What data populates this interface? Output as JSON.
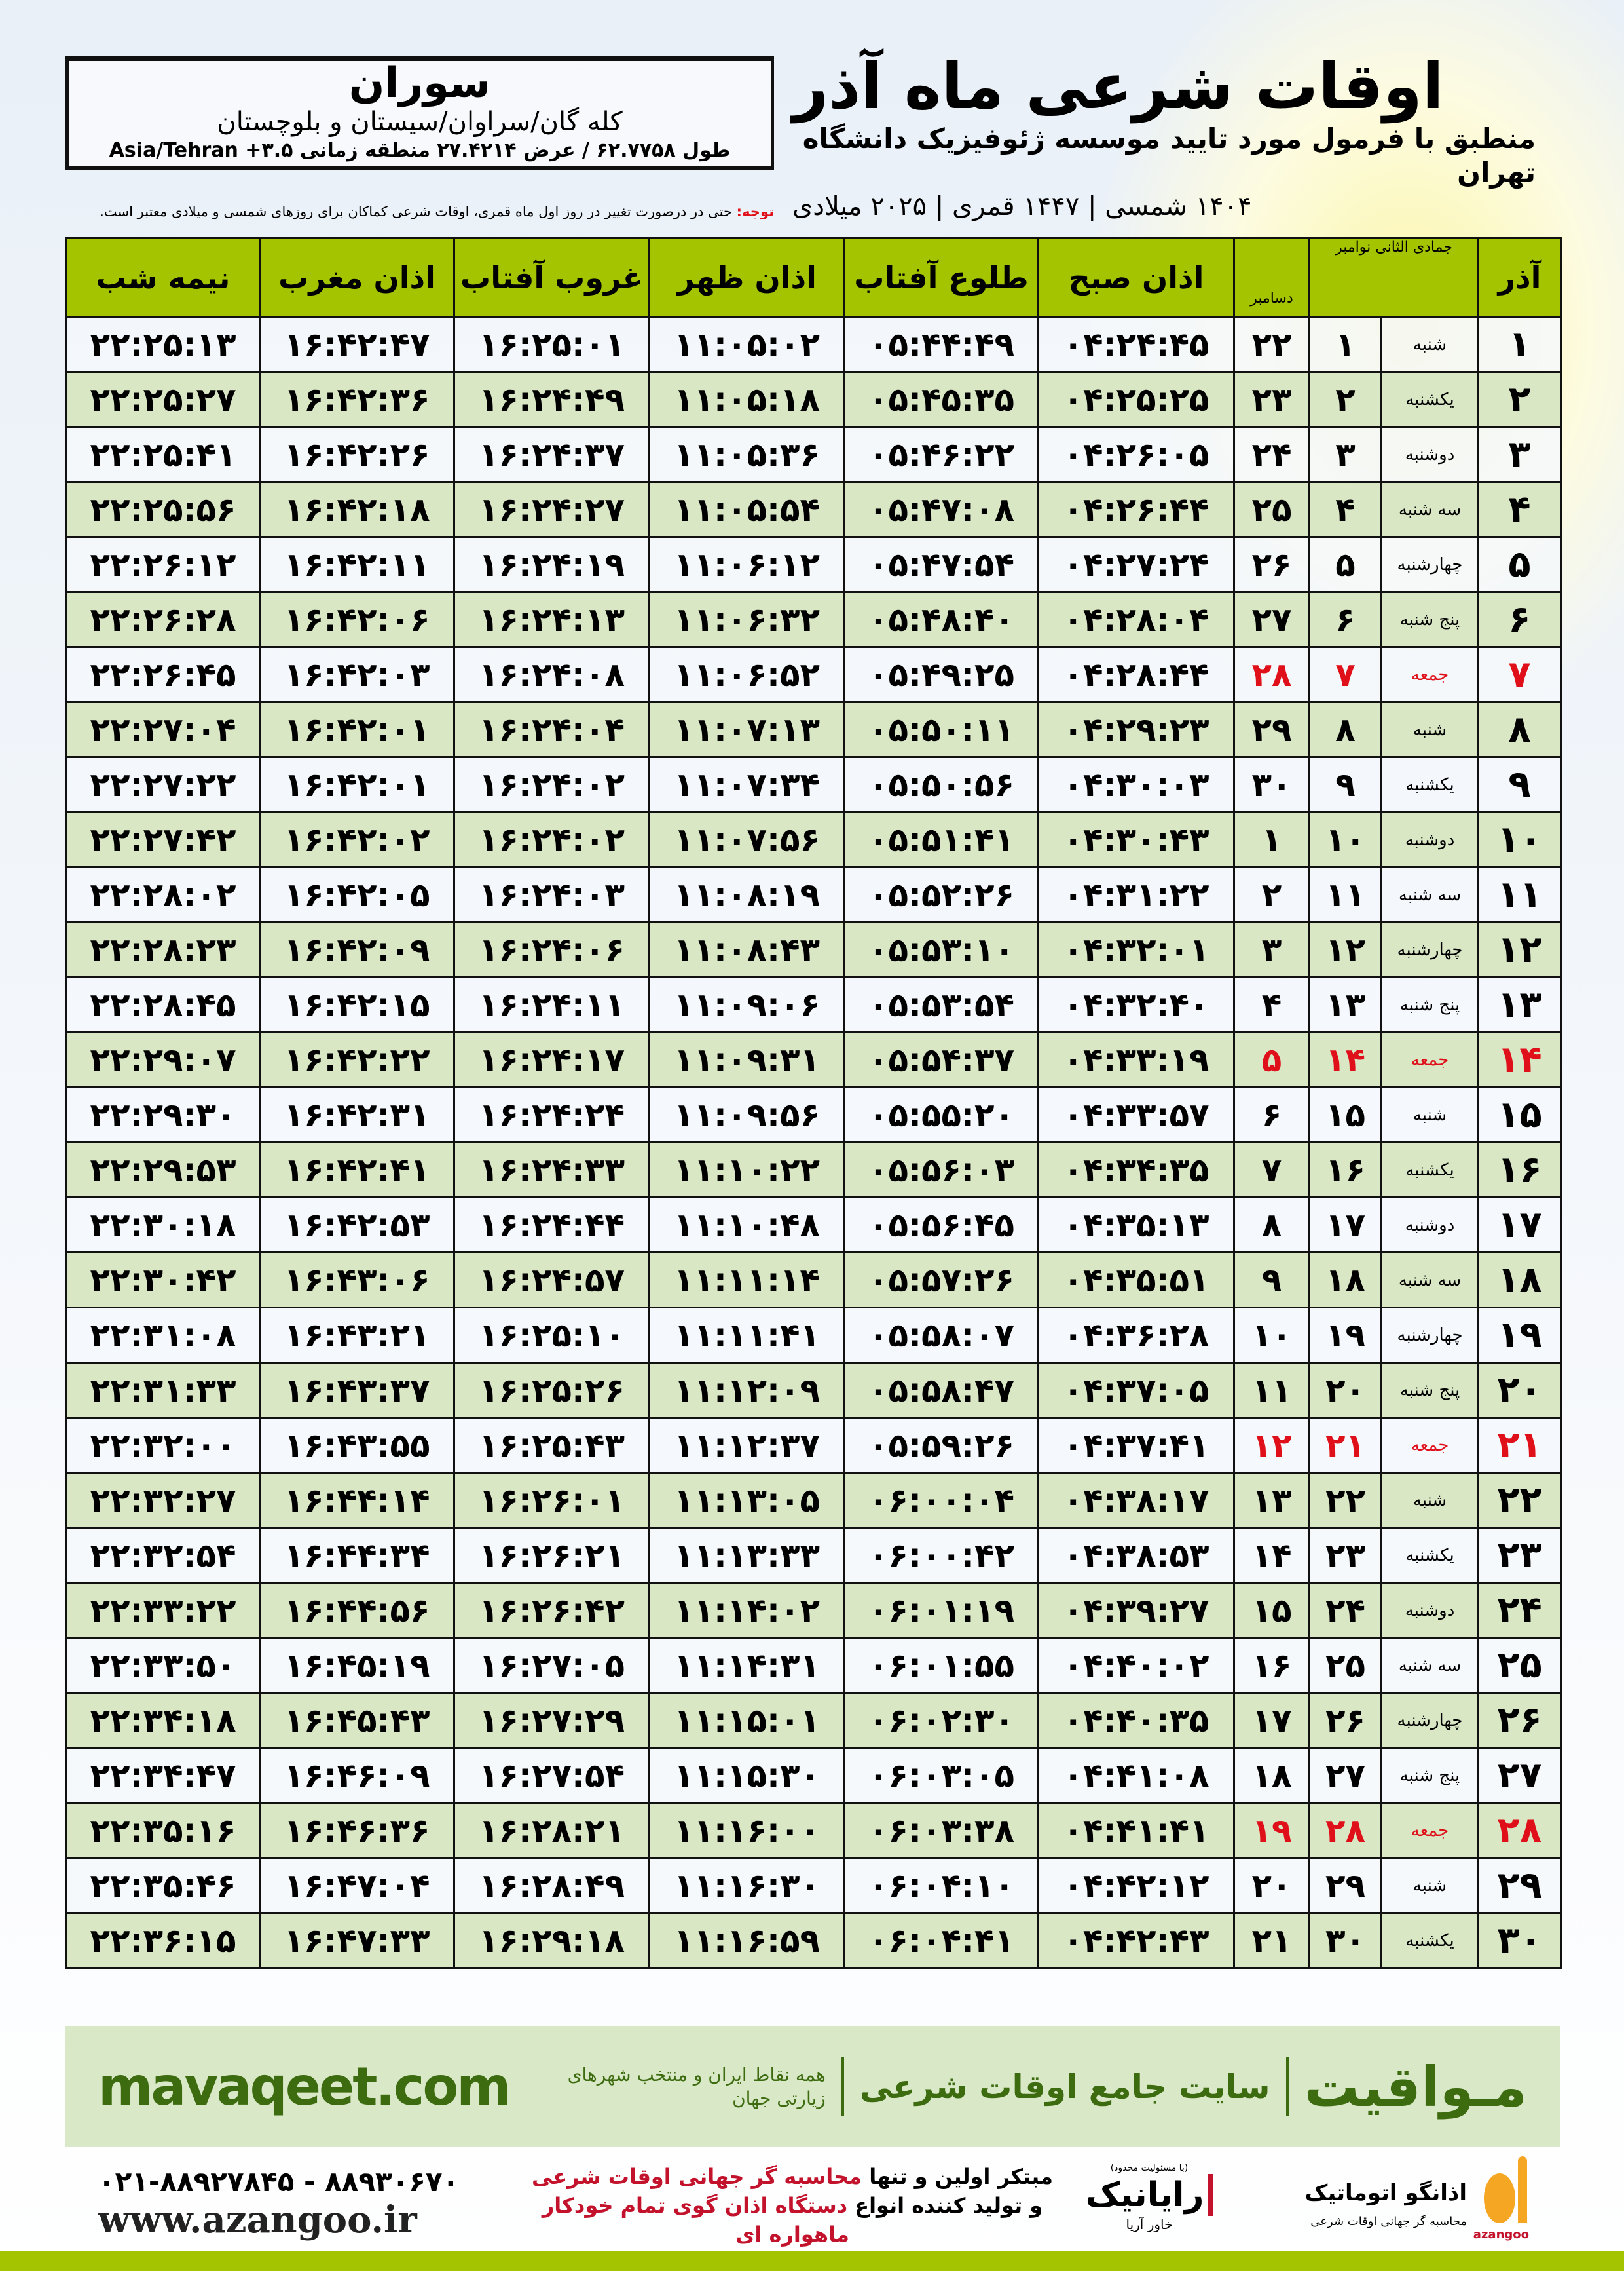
{
  "location": {
    "city": "سوران",
    "region": "کله گان/سراوان/سیستان و بلوچستان",
    "coords": "طول ۶۲.۷۷۵۸ / عرض ۲۷.۴۲۱۴ منطقه زمانی ۳.۵+ Asia/Tehran"
  },
  "header": {
    "title": "اوقات شرعی ماه آذر",
    "subtitle": "منطبق با فرمول مورد تایید موسسه ژئوفیزیک دانشگاه تهران",
    "dateline": "۱۴۰۴ شمسی | ۱۴۴۷ قمری | ۲۰۲۵ میلادی"
  },
  "note": {
    "label": "توجه:",
    "text": " حتی در درصورت تغییر در روز اول ماه قمری، اوقات شرعی کماکان برای روزهای شمسی و میلادی معتبر است."
  },
  "table": {
    "headers": {
      "azar": "آذر",
      "jumada": "جمادی الثانی",
      "november": "نوامبر",
      "december": "دسامبر",
      "sobh": "اذان صبح",
      "tolu": "طلوع آفتاب",
      "zohr": "اذان ظهر",
      "ghorub": "غروب آفتاب",
      "maghreb": "اذان مغرب",
      "nime": "نیمه شب"
    },
    "friday_color": "#e0101a",
    "rows": [
      [
        "۱",
        "شنبه",
        "۱",
        "۲۲",
        "۰۴:۲۴:۴۵",
        "۰۵:۴۴:۴۹",
        "۱۱:۰۵:۰۲",
        "۱۶:۲۵:۰۱",
        "۱۶:۴۲:۴۷",
        "۲۲:۲۵:۱۳"
      ],
      [
        "۲",
        "یکشنبه",
        "۲",
        "۲۳",
        "۰۴:۲۵:۲۵",
        "۰۵:۴۵:۳۵",
        "۱۱:۰۵:۱۸",
        "۱۶:۲۴:۴۹",
        "۱۶:۴۲:۳۶",
        "۲۲:۲۵:۲۷"
      ],
      [
        "۳",
        "دوشنبه",
        "۳",
        "۲۴",
        "۰۴:۲۶:۰۵",
        "۰۵:۴۶:۲۲",
        "۱۱:۰۵:۳۶",
        "۱۶:۲۴:۳۷",
        "۱۶:۴۲:۲۶",
        "۲۲:۲۵:۴۱"
      ],
      [
        "۴",
        "سه شنبه",
        "۴",
        "۲۵",
        "۰۴:۲۶:۴۴",
        "۰۵:۴۷:۰۸",
        "۱۱:۰۵:۵۴",
        "۱۶:۲۴:۲۷",
        "۱۶:۴۲:۱۸",
        "۲۲:۲۵:۵۶"
      ],
      [
        "۵",
        "چهارشنبه",
        "۵",
        "۲۶",
        "۰۴:۲۷:۲۴",
        "۰۵:۴۷:۵۴",
        "۱۱:۰۶:۱۲",
        "۱۶:۲۴:۱۹",
        "۱۶:۴۲:۱۱",
        "۲۲:۲۶:۱۲"
      ],
      [
        "۶",
        "پنج شنبه",
        "۶",
        "۲۷",
        "۰۴:۲۸:۰۴",
        "۰۵:۴۸:۴۰",
        "۱۱:۰۶:۳۲",
        "۱۶:۲۴:۱۳",
        "۱۶:۴۲:۰۶",
        "۲۲:۲۶:۲۸"
      ],
      [
        "۷",
        "جمعه",
        "۷",
        "۲۸",
        "۰۴:۲۸:۴۴",
        "۰۵:۴۹:۲۵",
        "۱۱:۰۶:۵۲",
        "۱۶:۲۴:۰۸",
        "۱۶:۴۲:۰۳",
        "۲۲:۲۶:۴۵"
      ],
      [
        "۸",
        "شنبه",
        "۸",
        "۲۹",
        "۰۴:۲۹:۲۳",
        "۰۵:۵۰:۱۱",
        "۱۱:۰۷:۱۳",
        "۱۶:۲۴:۰۴",
        "۱۶:۴۲:۰۱",
        "۲۲:۲۷:۰۴"
      ],
      [
        "۹",
        "یکشنبه",
        "۹",
        "۳۰",
        "۰۴:۳۰:۰۳",
        "۰۵:۵۰:۵۶",
        "۱۱:۰۷:۳۴",
        "۱۶:۲۴:۰۲",
        "۱۶:۴۲:۰۱",
        "۲۲:۲۷:۲۲"
      ],
      [
        "۱۰",
        "دوشنبه",
        "۱۰",
        "۱",
        "۰۴:۳۰:۴۳",
        "۰۵:۵۱:۴۱",
        "۱۱:۰۷:۵۶",
        "۱۶:۲۴:۰۲",
        "۱۶:۴۲:۰۲",
        "۲۲:۲۷:۴۲"
      ],
      [
        "۱۱",
        "سه شنبه",
        "۱۱",
        "۲",
        "۰۴:۳۱:۲۲",
        "۰۵:۵۲:۲۶",
        "۱۱:۰۸:۱۹",
        "۱۶:۲۴:۰۳",
        "۱۶:۴۲:۰۵",
        "۲۲:۲۸:۰۲"
      ],
      [
        "۱۲",
        "چهارشنبه",
        "۱۲",
        "۳",
        "۰۴:۳۲:۰۱",
        "۰۵:۵۳:۱۰",
        "۱۱:۰۸:۴۳",
        "۱۶:۲۴:۰۶",
        "۱۶:۴۲:۰۹",
        "۲۲:۲۸:۲۳"
      ],
      [
        "۱۳",
        "پنج شنبه",
        "۱۳",
        "۴",
        "۰۴:۳۲:۴۰",
        "۰۵:۵۳:۵۴",
        "۱۱:۰۹:۰۶",
        "۱۶:۲۴:۱۱",
        "۱۶:۴۲:۱۵",
        "۲۲:۲۸:۴۵"
      ],
      [
        "۱۴",
        "جمعه",
        "۱۴",
        "۵",
        "۰۴:۳۳:۱۹",
        "۰۵:۵۴:۳۷",
        "۱۱:۰۹:۳۱",
        "۱۶:۲۴:۱۷",
        "۱۶:۴۲:۲۲",
        "۲۲:۲۹:۰۷"
      ],
      [
        "۱۵",
        "شنبه",
        "۱۵",
        "۶",
        "۰۴:۳۳:۵۷",
        "۰۵:۵۵:۲۰",
        "۱۱:۰۹:۵۶",
        "۱۶:۲۴:۲۴",
        "۱۶:۴۲:۳۱",
        "۲۲:۲۹:۳۰"
      ],
      [
        "۱۶",
        "یکشنبه",
        "۱۶",
        "۷",
        "۰۴:۳۴:۳۵",
        "۰۵:۵۶:۰۳",
        "۱۱:۱۰:۲۲",
        "۱۶:۲۴:۳۳",
        "۱۶:۴۲:۴۱",
        "۲۲:۲۹:۵۳"
      ],
      [
        "۱۷",
        "دوشنبه",
        "۱۷",
        "۸",
        "۰۴:۳۵:۱۳",
        "۰۵:۵۶:۴۵",
        "۱۱:۱۰:۴۸",
        "۱۶:۲۴:۴۴",
        "۱۶:۴۲:۵۳",
        "۲۲:۳۰:۱۸"
      ],
      [
        "۱۸",
        "سه شنبه",
        "۱۸",
        "۹",
        "۰۴:۳۵:۵۱",
        "۰۵:۵۷:۲۶",
        "۱۱:۱۱:۱۴",
        "۱۶:۲۴:۵۷",
        "۱۶:۴۳:۰۶",
        "۲۲:۳۰:۴۲"
      ],
      [
        "۱۹",
        "چهارشنبه",
        "۱۹",
        "۱۰",
        "۰۴:۳۶:۲۸",
        "۰۵:۵۸:۰۷",
        "۱۱:۱۱:۴۱",
        "۱۶:۲۵:۱۰",
        "۱۶:۴۳:۲۱",
        "۲۲:۳۱:۰۸"
      ],
      [
        "۲۰",
        "پنج شنبه",
        "۲۰",
        "۱۱",
        "۰۴:۳۷:۰۵",
        "۰۵:۵۸:۴۷",
        "۱۱:۱۲:۰۹",
        "۱۶:۲۵:۲۶",
        "۱۶:۴۳:۳۷",
        "۲۲:۳۱:۳۳"
      ],
      [
        "۲۱",
        "جمعه",
        "۲۱",
        "۱۲",
        "۰۴:۳۷:۴۱",
        "۰۵:۵۹:۲۶",
        "۱۱:۱۲:۳۷",
        "۱۶:۲۵:۴۳",
        "۱۶:۴۳:۵۵",
        "۲۲:۳۲:۰۰"
      ],
      [
        "۲۲",
        "شنبه",
        "۲۲",
        "۱۳",
        "۰۴:۳۸:۱۷",
        "۰۶:۰۰:۰۴",
        "۱۱:۱۳:۰۵",
        "۱۶:۲۶:۰۱",
        "۱۶:۴۴:۱۴",
        "۲۲:۳۲:۲۷"
      ],
      [
        "۲۳",
        "یکشنبه",
        "۲۳",
        "۱۴",
        "۰۴:۳۸:۵۳",
        "۰۶:۰۰:۴۲",
        "۱۱:۱۳:۳۳",
        "۱۶:۲۶:۲۱",
        "۱۶:۴۴:۳۴",
        "۲۲:۳۲:۵۴"
      ],
      [
        "۲۴",
        "دوشنبه",
        "۲۴",
        "۱۵",
        "۰۴:۳۹:۲۷",
        "۰۶:۰۱:۱۹",
        "۱۱:۱۴:۰۲",
        "۱۶:۲۶:۴۲",
        "۱۶:۴۴:۵۶",
        "۲۲:۳۳:۲۲"
      ],
      [
        "۲۵",
        "سه شنبه",
        "۲۵",
        "۱۶",
        "۰۴:۴۰:۰۲",
        "۰۶:۰۱:۵۵",
        "۱۱:۱۴:۳۱",
        "۱۶:۲۷:۰۵",
        "۱۶:۴۵:۱۹",
        "۲۲:۳۳:۵۰"
      ],
      [
        "۲۶",
        "چهارشنبه",
        "۲۶",
        "۱۷",
        "۰۴:۴۰:۳۵",
        "۰۶:۰۲:۳۰",
        "۱۱:۱۵:۰۱",
        "۱۶:۲۷:۲۹",
        "۱۶:۴۵:۴۳",
        "۲۲:۳۴:۱۸"
      ],
      [
        "۲۷",
        "پنج شنبه",
        "۲۷",
        "۱۸",
        "۰۴:۴۱:۰۸",
        "۰۶:۰۳:۰۵",
        "۱۱:۱۵:۳۰",
        "۱۶:۲۷:۵۴",
        "۱۶:۴۶:۰۹",
        "۲۲:۳۴:۴۷"
      ],
      [
        "۲۸",
        "جمعه",
        "۲۸",
        "۱۹",
        "۰۴:۴۱:۴۱",
        "۰۶:۰۳:۳۸",
        "۱۱:۱۶:۰۰",
        "۱۶:۲۸:۲۱",
        "۱۶:۴۶:۳۶",
        "۲۲:۳۵:۱۶"
      ],
      [
        "۲۹",
        "شنبه",
        "۲۹",
        "۲۰",
        "۰۴:۴۲:۱۲",
        "۰۶:۰۴:۱۰",
        "۱۱:۱۶:۳۰",
        "۱۶:۲۸:۴۹",
        "۱۶:۴۷:۰۴",
        "۲۲:۳۵:۴۶"
      ],
      [
        "۳۰",
        "یکشنبه",
        "۳۰",
        "۲۱",
        "۰۴:۴۲:۴۳",
        "۰۶:۰۴:۴۱",
        "۱۱:۱۶:۵۹",
        "۱۶:۲۹:۱۸",
        "۱۶:۴۷:۳۳",
        "۲۲:۳۶:۱۵"
      ]
    ]
  },
  "banner": {
    "brand": "مـواقیت",
    "site": "سایت جامع اوقات شرعی",
    "tagline": "همه نقاط ایران و منتخب شهرهای زیارتی جهان",
    "url": "mavaqeet.com",
    "color": "#3d6b10"
  },
  "footer": {
    "phones": "۰۲۱-۸۸۹۲۷۸۴۵ - ۸۸۹۳۰۶۷۰",
    "website": "www.azangoo.ir",
    "slogan1a": "مبتکر اولین و تنها ",
    "slogan1b": "محاسبه گر جهانی اوقات شرعی",
    "slogan2a": "و تولید کننده انواع ",
    "slogan2b": "دستگاه اذان گوی تمام خودکار ماهواره ای",
    "rayanik": "رایانیک",
    "rayanik_sub": "خاور آریا",
    "rayanik_note": "(با مسئولیت محدود)",
    "azangoo_name": "اذانگو اتوماتیک",
    "azangoo_sub": "محاسبه گر جهانی اوقات شرعی",
    "azangoo_logo": "azangoo"
  }
}
